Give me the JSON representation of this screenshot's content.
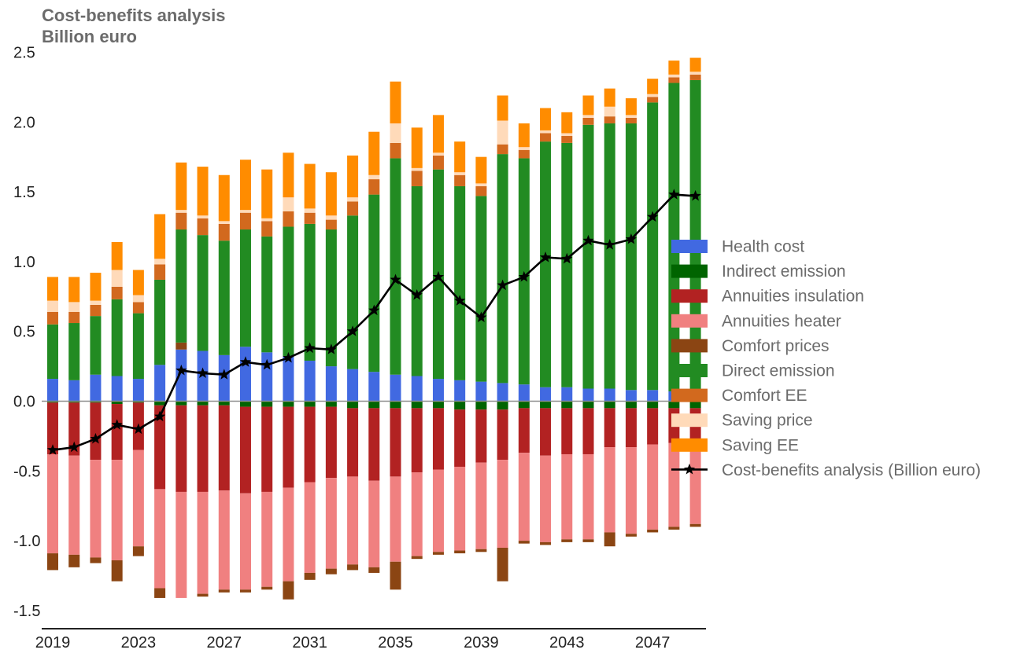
{
  "chart_data": {
    "type": "bar",
    "stacked": true,
    "title": "Cost-benefits analysis",
    "subtitle": "Billion euro",
    "xlabel": "",
    "ylabel": "",
    "ylim": [
      -1.63,
      2.48
    ],
    "yticks": [
      "2.5",
      "2.0",
      "1.5",
      "1.0",
      "0.5",
      "0.0",
      "-0.5",
      "-1.0",
      "-1.5"
    ],
    "ytick_values": [
      2.5,
      2.0,
      1.5,
      1.0,
      0.5,
      0.0,
      -0.5,
      -1.0,
      -1.5
    ],
    "xticks": [
      "2019",
      "2023",
      "2027",
      "2031",
      "2035",
      "2039",
      "2043",
      "2047"
    ],
    "legend_position": "right",
    "categories": [
      2019,
      2020,
      2021,
      2022,
      2023,
      2024,
      2025,
      2026,
      2027,
      2028,
      2029,
      2030,
      2031,
      2032,
      2033,
      2034,
      2035,
      2036,
      2037,
      2038,
      2039,
      2040,
      2041,
      2042,
      2043,
      2044,
      2045,
      2046,
      2047,
      2048,
      2049
    ],
    "series": [
      {
        "name": "Health cost",
        "color": "#4169e1",
        "values": [
          0.16,
          0.15,
          0.19,
          0.18,
          0.16,
          0.26,
          0.37,
          0.36,
          0.33,
          0.39,
          0.35,
          0.32,
          0.29,
          0.25,
          0.23,
          0.21,
          0.19,
          0.18,
          0.16,
          0.15,
          0.14,
          0.13,
          0.12,
          0.1,
          0.1,
          0.09,
          0.09,
          0.08,
          0.08,
          0.07,
          0.06
        ]
      },
      {
        "name": "Indirect emission",
        "color": "#006400",
        "values": [
          -0.01,
          -0.01,
          -0.01,
          -0.02,
          -0.01,
          -0.03,
          -0.03,
          -0.03,
          -0.03,
          -0.04,
          -0.04,
          -0.04,
          -0.04,
          -0.04,
          -0.05,
          -0.05,
          -0.05,
          -0.05,
          -0.05,
          -0.06,
          -0.06,
          -0.06,
          -0.05,
          -0.05,
          -0.05,
          -0.05,
          -0.05,
          -0.05,
          -0.05,
          -0.05,
          -0.05
        ]
      },
      {
        "name": "Annuities insulation",
        "color": "#b22222",
        "values": [
          -0.37,
          -0.38,
          -0.41,
          -0.4,
          -0.34,
          -0.6,
          -0.62,
          -0.62,
          -0.61,
          -0.62,
          -0.61,
          -0.58,
          -0.54,
          -0.51,
          -0.49,
          -0.52,
          -0.49,
          -0.46,
          -0.44,
          -0.41,
          -0.38,
          -0.36,
          -0.32,
          -0.34,
          -0.33,
          -0.33,
          -0.28,
          -0.28,
          -0.26,
          -0.25,
          -0.24
        ]
      },
      {
        "name": "Annuities heater",
        "color": "#f08080",
        "values": [
          -0.71,
          -0.71,
          -0.7,
          -0.72,
          -0.69,
          -0.71,
          -0.76,
          -0.73,
          -0.71,
          -0.69,
          -0.68,
          -0.67,
          -0.65,
          -0.65,
          -0.63,
          -0.62,
          -0.61,
          -0.6,
          -0.59,
          -0.6,
          -0.62,
          -0.63,
          -0.63,
          -0.62,
          -0.61,
          -0.61,
          -0.61,
          -0.62,
          -0.61,
          -0.6,
          -0.59
        ]
      },
      {
        "name": "Comfort prices",
        "color": "#8b4513",
        "values": [
          -0.12,
          -0.09,
          -0.04,
          -0.15,
          -0.07,
          -0.07,
          0.05,
          -0.02,
          -0.02,
          -0.02,
          -0.02,
          -0.13,
          -0.05,
          -0.04,
          -0.04,
          -0.04,
          -0.2,
          -0.02,
          -0.02,
          -0.02,
          -0.02,
          -0.24,
          -0.02,
          -0.02,
          -0.02,
          -0.02,
          -0.1,
          -0.02,
          -0.02,
          -0.02,
          -0.02
        ]
      },
      {
        "name": "Direct emission",
        "color": "#228b22",
        "values": [
          0.39,
          0.41,
          0.42,
          0.55,
          0.47,
          0.61,
          0.81,
          0.83,
          0.82,
          0.84,
          0.83,
          0.93,
          0.98,
          0.98,
          1.1,
          1.27,
          1.55,
          1.36,
          1.5,
          1.39,
          1.33,
          1.64,
          1.62,
          1.76,
          1.75,
          1.89,
          1.9,
          1.91,
          2.06,
          2.21,
          2.24
        ]
      },
      {
        "name": "Comfort EE",
        "color": "#d2691e",
        "values": [
          0.09,
          0.08,
          0.08,
          0.09,
          0.08,
          0.11,
          0.12,
          0.12,
          0.12,
          0.12,
          0.11,
          0.11,
          0.08,
          0.07,
          0.1,
          0.11,
          0.11,
          0.11,
          0.1,
          0.08,
          0.07,
          0.07,
          0.06,
          0.06,
          0.05,
          0.05,
          0.05,
          0.04,
          0.04,
          0.04,
          0.04
        ]
      },
      {
        "name": "Saving price",
        "color": "#ffdab9",
        "values": [
          0.08,
          0.07,
          0.03,
          0.12,
          0.05,
          0.04,
          0.02,
          0.02,
          0.02,
          0.02,
          0.02,
          0.1,
          0.03,
          0.03,
          0.03,
          0.03,
          0.14,
          0.02,
          0.02,
          0.02,
          0.02,
          0.17,
          0.02,
          0.02,
          0.02,
          0.02,
          0.07,
          0.02,
          0.02,
          0.02,
          0.02
        ]
      },
      {
        "name": "Saving EE",
        "color": "#ff8c00",
        "values": [
          0.17,
          0.18,
          0.2,
          0.2,
          0.18,
          0.32,
          0.34,
          0.35,
          0.33,
          0.36,
          0.35,
          0.32,
          0.32,
          0.31,
          0.3,
          0.31,
          0.3,
          0.29,
          0.27,
          0.22,
          0.19,
          0.18,
          0.17,
          0.16,
          0.15,
          0.14,
          0.13,
          0.12,
          0.11,
          0.1,
          0.1
        ]
      },
      {
        "name": "Cost-benefits analysis (Billion euro)",
        "color": "#000000",
        "type": "line",
        "values": [
          -0.35,
          -0.33,
          -0.27,
          -0.17,
          -0.2,
          -0.11,
          0.22,
          0.2,
          0.19,
          0.28,
          0.26,
          0.31,
          0.38,
          0.37,
          0.5,
          0.65,
          0.87,
          0.76,
          0.89,
          0.72,
          0.6,
          0.83,
          0.89,
          1.03,
          1.02,
          1.15,
          1.12,
          1.16,
          1.32,
          1.48,
          1.47
        ]
      }
    ]
  }
}
